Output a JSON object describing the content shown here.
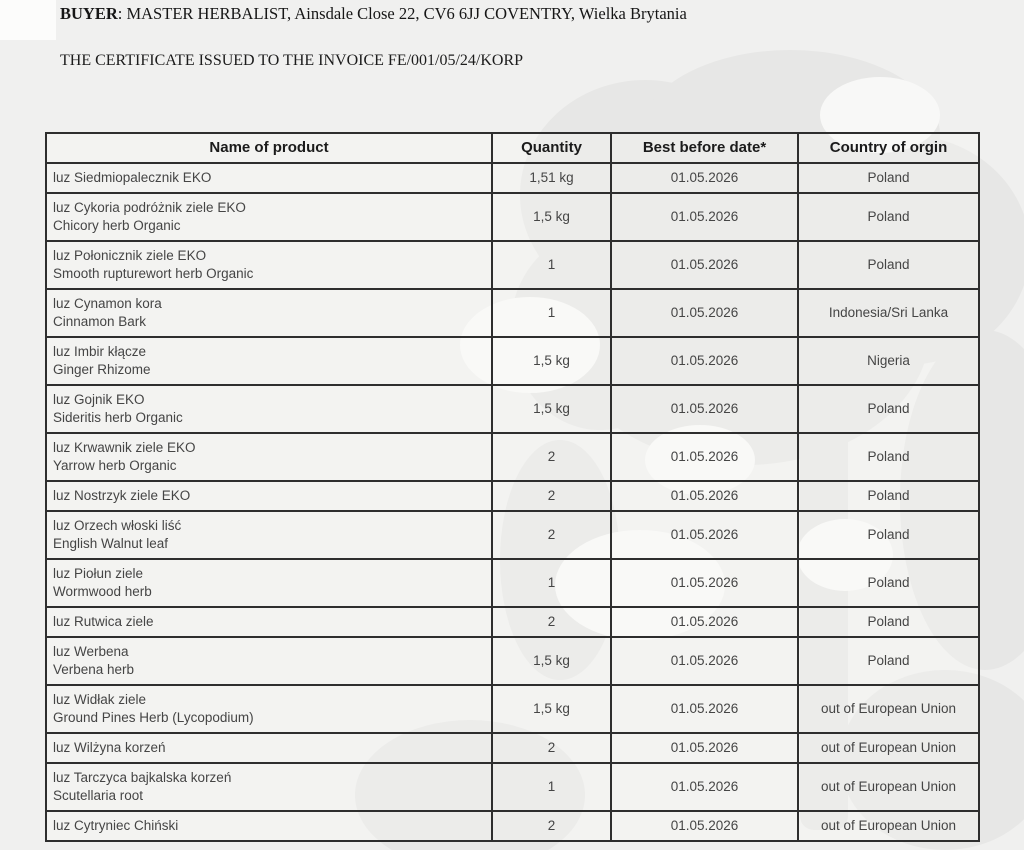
{
  "header": {
    "buyer_label": "BUYER",
    "buyer_rest": ": MASTER HERBALIST, Ainsdale Close 22, CV6 6JJ COVENTRY, Wielka Brytania",
    "certificate_line": "THE CERTIFICATE ISSUED TO THE INVOICE FE/001/05/24/KORP"
  },
  "background": {
    "watermark": "faint-tree-silhouette",
    "page_color": "#f0f0ef",
    "watermark_dark": "#e7e7e6",
    "watermark_light": "#f8f8f7"
  },
  "colors": {
    "border": "#2e2e2e",
    "header_text": "#1b1b1b",
    "body_text": "#454545"
  },
  "table": {
    "columns": [
      "Name of product",
      "Quantity",
      "Best before date*",
      "Country of orgin"
    ],
    "rows": [
      {
        "name_lines": [
          "luz Siedmiopalecznik EKO"
        ],
        "quantity": "1,51 kg",
        "best_before": "01.05.2026",
        "country": "Poland"
      },
      {
        "name_lines": [
          "luz Cykoria podróżnik ziele EKO",
          "Chicory herb Organic"
        ],
        "quantity": "1,5 kg",
        "best_before": "01.05.2026",
        "country": "Poland"
      },
      {
        "name_lines": [
          "luz Połonicznik ziele EKO",
          "Smooth rupturewort herb Organic"
        ],
        "quantity": "1",
        "best_before": "01.05.2026",
        "country": "Poland"
      },
      {
        "name_lines": [
          "luz Cynamon kora",
          "Cinnamon Bark"
        ],
        "quantity": "1",
        "best_before": "01.05.2026",
        "country": "Indonesia/Sri Lanka"
      },
      {
        "name_lines": [
          "luz Imbir kłącze",
          "Ginger Rhizome"
        ],
        "quantity": "1,5 kg",
        "best_before": "01.05.2026",
        "country": "Nigeria"
      },
      {
        "name_lines": [
          "luz Gojnik EKO",
          "Sideritis herb Organic"
        ],
        "quantity": "1,5 kg",
        "best_before": "01.05.2026",
        "country": "Poland"
      },
      {
        "name_lines": [
          "luz Krwawnik ziele EKO",
          "Yarrow herb Organic"
        ],
        "quantity": "2",
        "best_before": "01.05.2026",
        "country": "Poland"
      },
      {
        "name_lines": [
          "luz Nostrzyk ziele EKO"
        ],
        "quantity": "2",
        "best_before": "01.05.2026",
        "country": "Poland"
      },
      {
        "name_lines": [
          "luz Orzech włoski liść",
          "English Walnut leaf"
        ],
        "quantity": "2",
        "best_before": "01.05.2026",
        "country": "Poland"
      },
      {
        "name_lines": [
          "luz Piołun ziele",
          "Wormwood herb"
        ],
        "quantity": "1",
        "best_before": "01.05.2026",
        "country": "Poland"
      },
      {
        "name_lines": [
          "luz Rutwica ziele"
        ],
        "quantity": "2",
        "best_before": "01.05.2026",
        "country": "Poland"
      },
      {
        "name_lines": [
          "luz Werbena",
          "Verbena herb"
        ],
        "quantity": "1,5 kg",
        "best_before": "01.05.2026",
        "country": "Poland"
      },
      {
        "name_lines": [
          "luz Widłak ziele",
          "Ground Pines Herb (Lycopodium)"
        ],
        "quantity": "1,5 kg",
        "best_before": "01.05.2026",
        "country": "out of European Union"
      },
      {
        "name_lines": [
          "luz Wilżyna korzeń"
        ],
        "quantity": "2",
        "best_before": "01.05.2026",
        "country": "out of European Union"
      },
      {
        "name_lines": [
          "luz Tarczyca bajkalska korzeń",
          "Scutellaria root"
        ],
        "quantity": "1",
        "best_before": "01.05.2026",
        "country": "out of European Union"
      },
      {
        "name_lines": [
          "luz Cytryniec Chiński"
        ],
        "quantity": "2",
        "best_before": "01.05.2026",
        "country": "out of European Union"
      }
    ]
  }
}
